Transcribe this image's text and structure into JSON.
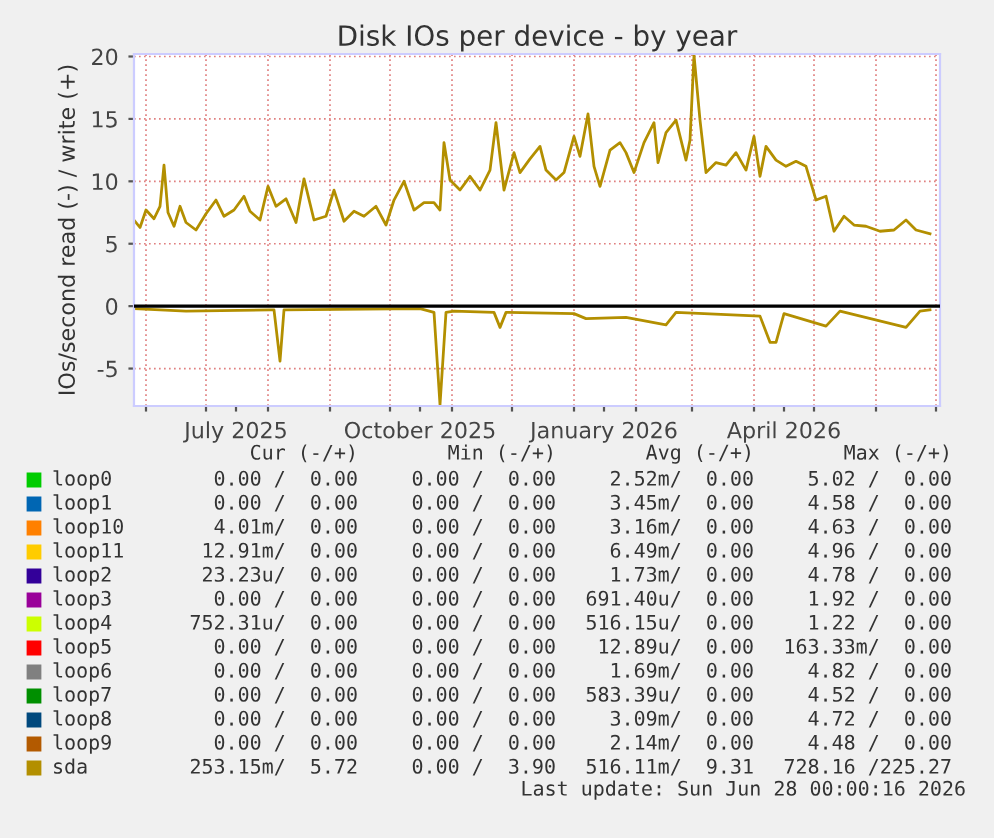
{
  "chart_data": {
    "type": "line",
    "title": "Disk IOs per device - by year",
    "ylabel": "IOs/second read (-) / write (+)",
    "xlim": [
      "2025-05-26",
      "2026-07-03"
    ],
    "xticks": [
      {
        "value": "2025-06-01",
        "label": null
      },
      {
        "value": "2025-07-01",
        "label": null
      },
      {
        "value": "2025-07-16",
        "label": "July 2025"
      },
      {
        "value": "2025-08-01",
        "label": null
      },
      {
        "value": "2025-09-01",
        "label": null
      },
      {
        "value": "2025-10-01",
        "label": null
      },
      {
        "value": "2025-10-16",
        "label": "October 2025"
      },
      {
        "value": "2025-11-01",
        "label": null
      },
      {
        "value": "2025-12-01",
        "label": null
      },
      {
        "value": "2026-01-01",
        "label": null
      },
      {
        "value": "2026-01-16",
        "label": "January 2026"
      },
      {
        "value": "2026-02-01",
        "label": null
      },
      {
        "value": "2026-03-01",
        "label": null
      },
      {
        "value": "2026-04-01",
        "label": null
      },
      {
        "value": "2026-04-16",
        "label": "April 2026"
      },
      {
        "value": "2026-05-01",
        "label": null
      },
      {
        "value": "2026-06-01",
        "label": null
      },
      {
        "value": "2026-07-01",
        "label": null
      }
    ],
    "ylim": [
      -8,
      20.2
    ],
    "yticks": [
      -5,
      0,
      5,
      10,
      15,
      20
    ],
    "grid": true,
    "legend": "bottom",
    "ref_lines": [
      {
        "axis": "y",
        "value": 0,
        "color": "#000000"
      }
    ],
    "series": [
      {
        "name": "loop0",
        "color": "#00cc00"
      },
      {
        "name": "loop1",
        "color": "#0066b3"
      },
      {
        "name": "loop10",
        "color": "#ff8000"
      },
      {
        "name": "loop11",
        "color": "#ffcc00"
      },
      {
        "name": "loop2",
        "color": "#330099"
      },
      {
        "name": "loop3",
        "color": "#990099"
      },
      {
        "name": "loop4",
        "color": "#ccff00"
      },
      {
        "name": "loop5",
        "color": "#ff0000"
      },
      {
        "name": "loop6",
        "color": "#808080"
      },
      {
        "name": "loop7",
        "color": "#008f00"
      },
      {
        "name": "loop8",
        "color": "#00487d"
      },
      {
        "name": "loop9",
        "color": "#b35a00"
      },
      {
        "name": "sda",
        "color": "#b38f00",
        "x": [
          "2025-05-26",
          "2025-05-29",
          "2025-06-01",
          "2025-06-05",
          "2025-06-08",
          "2025-06-10",
          "2025-06-12",
          "2025-06-15",
          "2025-06-18",
          "2025-06-21",
          "2025-06-26",
          "2025-07-01",
          "2025-07-06",
          "2025-07-10",
          "2025-07-15",
          "2025-07-20",
          "2025-07-23",
          "2025-07-28",
          "2025-08-01",
          "2025-08-05",
          "2025-08-10",
          "2025-08-15",
          "2025-08-19",
          "2025-08-24",
          "2025-08-30",
          "2025-09-03",
          "2025-09-08",
          "2025-09-13",
          "2025-09-18",
          "2025-09-24",
          "2025-09-29",
          "2025-10-03",
          "2025-10-08",
          "2025-10-13",
          "2025-10-18",
          "2025-10-23",
          "2025-10-26",
          "2025-10-28",
          "2025-10-31",
          "2025-11-05",
          "2025-11-10",
          "2025-11-15",
          "2025-11-20",
          "2025-11-23",
          "2025-11-27",
          "2025-12-02",
          "2025-12-05",
          "2025-12-10",
          "2025-12-15",
          "2025-12-18",
          "2025-12-23",
          "2025-12-27",
          "2026-01-01",
          "2026-01-04",
          "2026-01-08",
          "2026-01-11",
          "2026-01-14",
          "2026-01-19",
          "2026-01-24",
          "2026-01-27",
          "2026-01-31",
          "2026-02-05",
          "2026-02-10",
          "2026-02-12",
          "2026-02-16",
          "2026-02-21",
          "2026-02-26",
          "2026-02-28",
          "2026-03-02",
          "2026-03-05",
          "2026-03-08",
          "2026-03-13",
          "2026-03-18",
          "2026-03-23",
          "2026-03-28",
          "2026-04-01",
          "2026-04-04",
          "2026-04-07",
          "2026-04-12",
          "2026-04-17",
          "2026-04-22",
          "2026-04-27",
          "2026-05-02",
          "2026-05-07",
          "2026-05-11",
          "2026-05-16",
          "2026-05-21",
          "2026-05-27",
          "2026-06-03",
          "2026-06-10",
          "2026-06-16",
          "2026-06-21",
          "2026-06-28"
        ],
        "values": [
          6.9,
          6.3,
          7.7,
          7.0,
          8.0,
          11.3,
          7.5,
          6.4,
          8.0,
          6.7,
          6.1,
          7.4,
          8.5,
          7.2,
          7.7,
          8.8,
          7.6,
          6.9,
          9.6,
          8.0,
          8.6,
          6.7,
          10.2,
          6.9,
          7.2,
          9.3,
          6.8,
          7.6,
          7.2,
          8.0,
          6.5,
          8.5,
          10.0,
          7.7,
          8.3,
          8.3,
          7.7,
          13.1,
          10.1,
          9.3,
          10.4,
          9.3,
          10.9,
          14.7,
          9.3,
          12.3,
          10.7,
          11.8,
          12.8,
          10.9,
          10.1,
          10.7,
          13.6,
          12.0,
          15.4,
          11.2,
          9.6,
          12.5,
          13.1,
          12.3,
          10.7,
          13.1,
          14.7,
          11.5,
          13.9,
          14.9,
          11.7,
          13.3,
          20.1,
          14.9,
          10.7,
          11.5,
          11.3,
          12.3,
          10.9,
          13.6,
          10.4,
          12.8,
          11.7,
          11.2,
          11.6,
          11.2,
          8.5,
          8.8,
          6.0,
          7.2,
          6.5,
          6.4,
          6.0,
          6.1,
          6.9,
          6.1,
          5.8
        ]
      },
      {
        "color": "#b38f00",
        "x": [
          "2025-05-26",
          "2025-06-21",
          "2025-08-02",
          "2025-08-04",
          "2025-08-07",
          "2025-08-09",
          "2025-10-16",
          "2025-10-23",
          "2025-10-26",
          "2025-10-29",
          "2025-11-02",
          "2025-11-22",
          "2025-11-25",
          "2025-11-28",
          "2026-01-01",
          "2026-01-07",
          "2026-01-27",
          "2026-02-16",
          "2026-02-21",
          "2026-04-04",
          "2026-04-09",
          "2026-04-12",
          "2026-04-16",
          "2026-05-07",
          "2026-05-14",
          "2026-06-16",
          "2026-06-23",
          "2026-06-28"
        ],
        "values": [
          -0.2,
          -0.4,
          -0.3,
          -0.3,
          -4.4,
          -0.3,
          -0.2,
          -0.5,
          -7.9,
          -0.5,
          -0.4,
          -0.5,
          -1.7,
          -0.5,
          -0.6,
          -1.0,
          -0.9,
          -1.5,
          -0.5,
          -0.8,
          -2.9,
          -2.9,
          -0.6,
          -1.6,
          -0.4,
          -1.7,
          -0.4,
          -0.3
        ]
      }
    ],
    "annotations": [
      "Cur (-/+)",
      "Min (-/+)",
      "Avg (-/+)",
      "Max (-/+)",
      "0.00 /  0.00",
      "0.00 /  0.00",
      "2.52m/  0.00",
      "5.02 /  0.00",
      "0.00 /  0.00",
      "0.00 /  0.00",
      "3.45m/  0.00",
      "4.58 /  0.00",
      "4.01m/  0.00",
      "0.00 /  0.00",
      "3.16m/  0.00",
      "4.63 /  0.00",
      "12.91m/  0.00",
      "0.00 /  0.00",
      "6.49m/  0.00",
      "4.96 /  0.00",
      "23.23u/  0.00",
      "0.00 /  0.00",
      "1.73m/  0.00",
      "4.78 /  0.00",
      "0.00 /  0.00",
      "0.00 /  0.00",
      "691.40u/  0.00",
      "1.92 /  0.00",
      "752.31u/  0.00",
      "0.00 /  0.00",
      "516.15u/  0.00",
      "1.22 /  0.00",
      "0.00 /  0.00",
      "0.00 /  0.00",
      "12.89u/  0.00",
      "163.33m/  0.00",
      "0.00 /  0.00",
      "0.00 /  0.00",
      "1.69m/  0.00",
      "4.82 /  0.00",
      "0.00 /  0.00",
      "0.00 /  0.00",
      "583.39u/  0.00",
      "4.52 /  0.00",
      "0.00 /  0.00",
      "0.00 /  0.00",
      "3.09m/  0.00",
      "4.72 /  0.00",
      "0.00 /  0.00",
      "0.00 /  0.00",
      "2.14m/  0.00",
      "4.48 /  0.00",
      "253.15m/  5.72",
      "0.00 /  3.90",
      "516.11m/  9.31",
      "728.16 /225.27",
      "Last update: Sun Jun 28 00:00:16 2026"
    ]
  }
}
